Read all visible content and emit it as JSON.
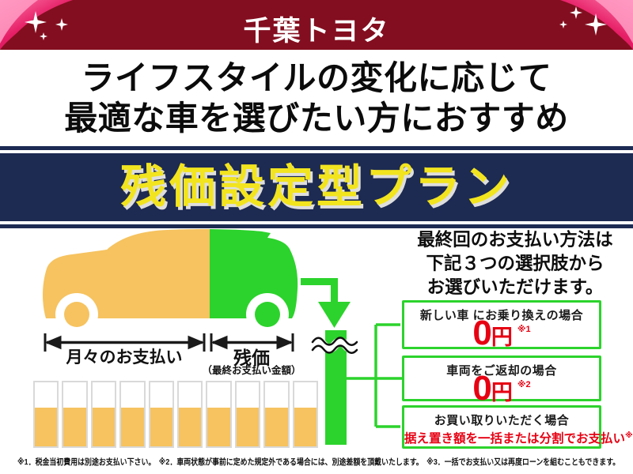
{
  "header": {
    "brand": "千葉トヨタ"
  },
  "headline": {
    "line1": "ライフスタイルの変化に応じて",
    "line2": "最適な車を選びたい方におすすめ"
  },
  "plan_banner": {
    "title": "残価設定型プラン"
  },
  "diagram": {
    "monthly_arrow_label": "月々のお支払い",
    "residual_arrow_label": "残価",
    "residual_arrow_sublabel": "（最終お支払い金額）",
    "monthly_bars": {
      "count": 10,
      "fill_percent": 60
    }
  },
  "options_intro": {
    "lines": [
      "最終回のお支払い方法は",
      "下記３つの選択肢から",
      "お選びいただけます。"
    ]
  },
  "options": [
    {
      "title": "新しい車 にお乗り換えの場合",
      "amount": "0",
      "unit": "円",
      "note": "※1"
    },
    {
      "title": "車両をご返却の場合",
      "amount": "0",
      "unit": "円",
      "note": "※2"
    },
    {
      "title": "お買い取りいただく場合",
      "detail": "据え置き額を一括または分割でお支払い",
      "note": "※3"
    }
  ],
  "footnotes": "※1．税金当初費用は別途お支払い下さい。　※2．車両状態が事前に定めた規定外である場合には、別途差額を頂戴いたします。　※3．一括でお支払い又は再度ローンを組むこともできます。",
  "colors": {
    "header_bg": "#830e1f",
    "ribbon_pink": "#e61e66",
    "banner_navy": "#1d2a52",
    "accent_yellow": "#f2e41e",
    "paid_orange": "#f6c360",
    "residual_green": "#2cd32c",
    "price_red": "#e60012"
  }
}
